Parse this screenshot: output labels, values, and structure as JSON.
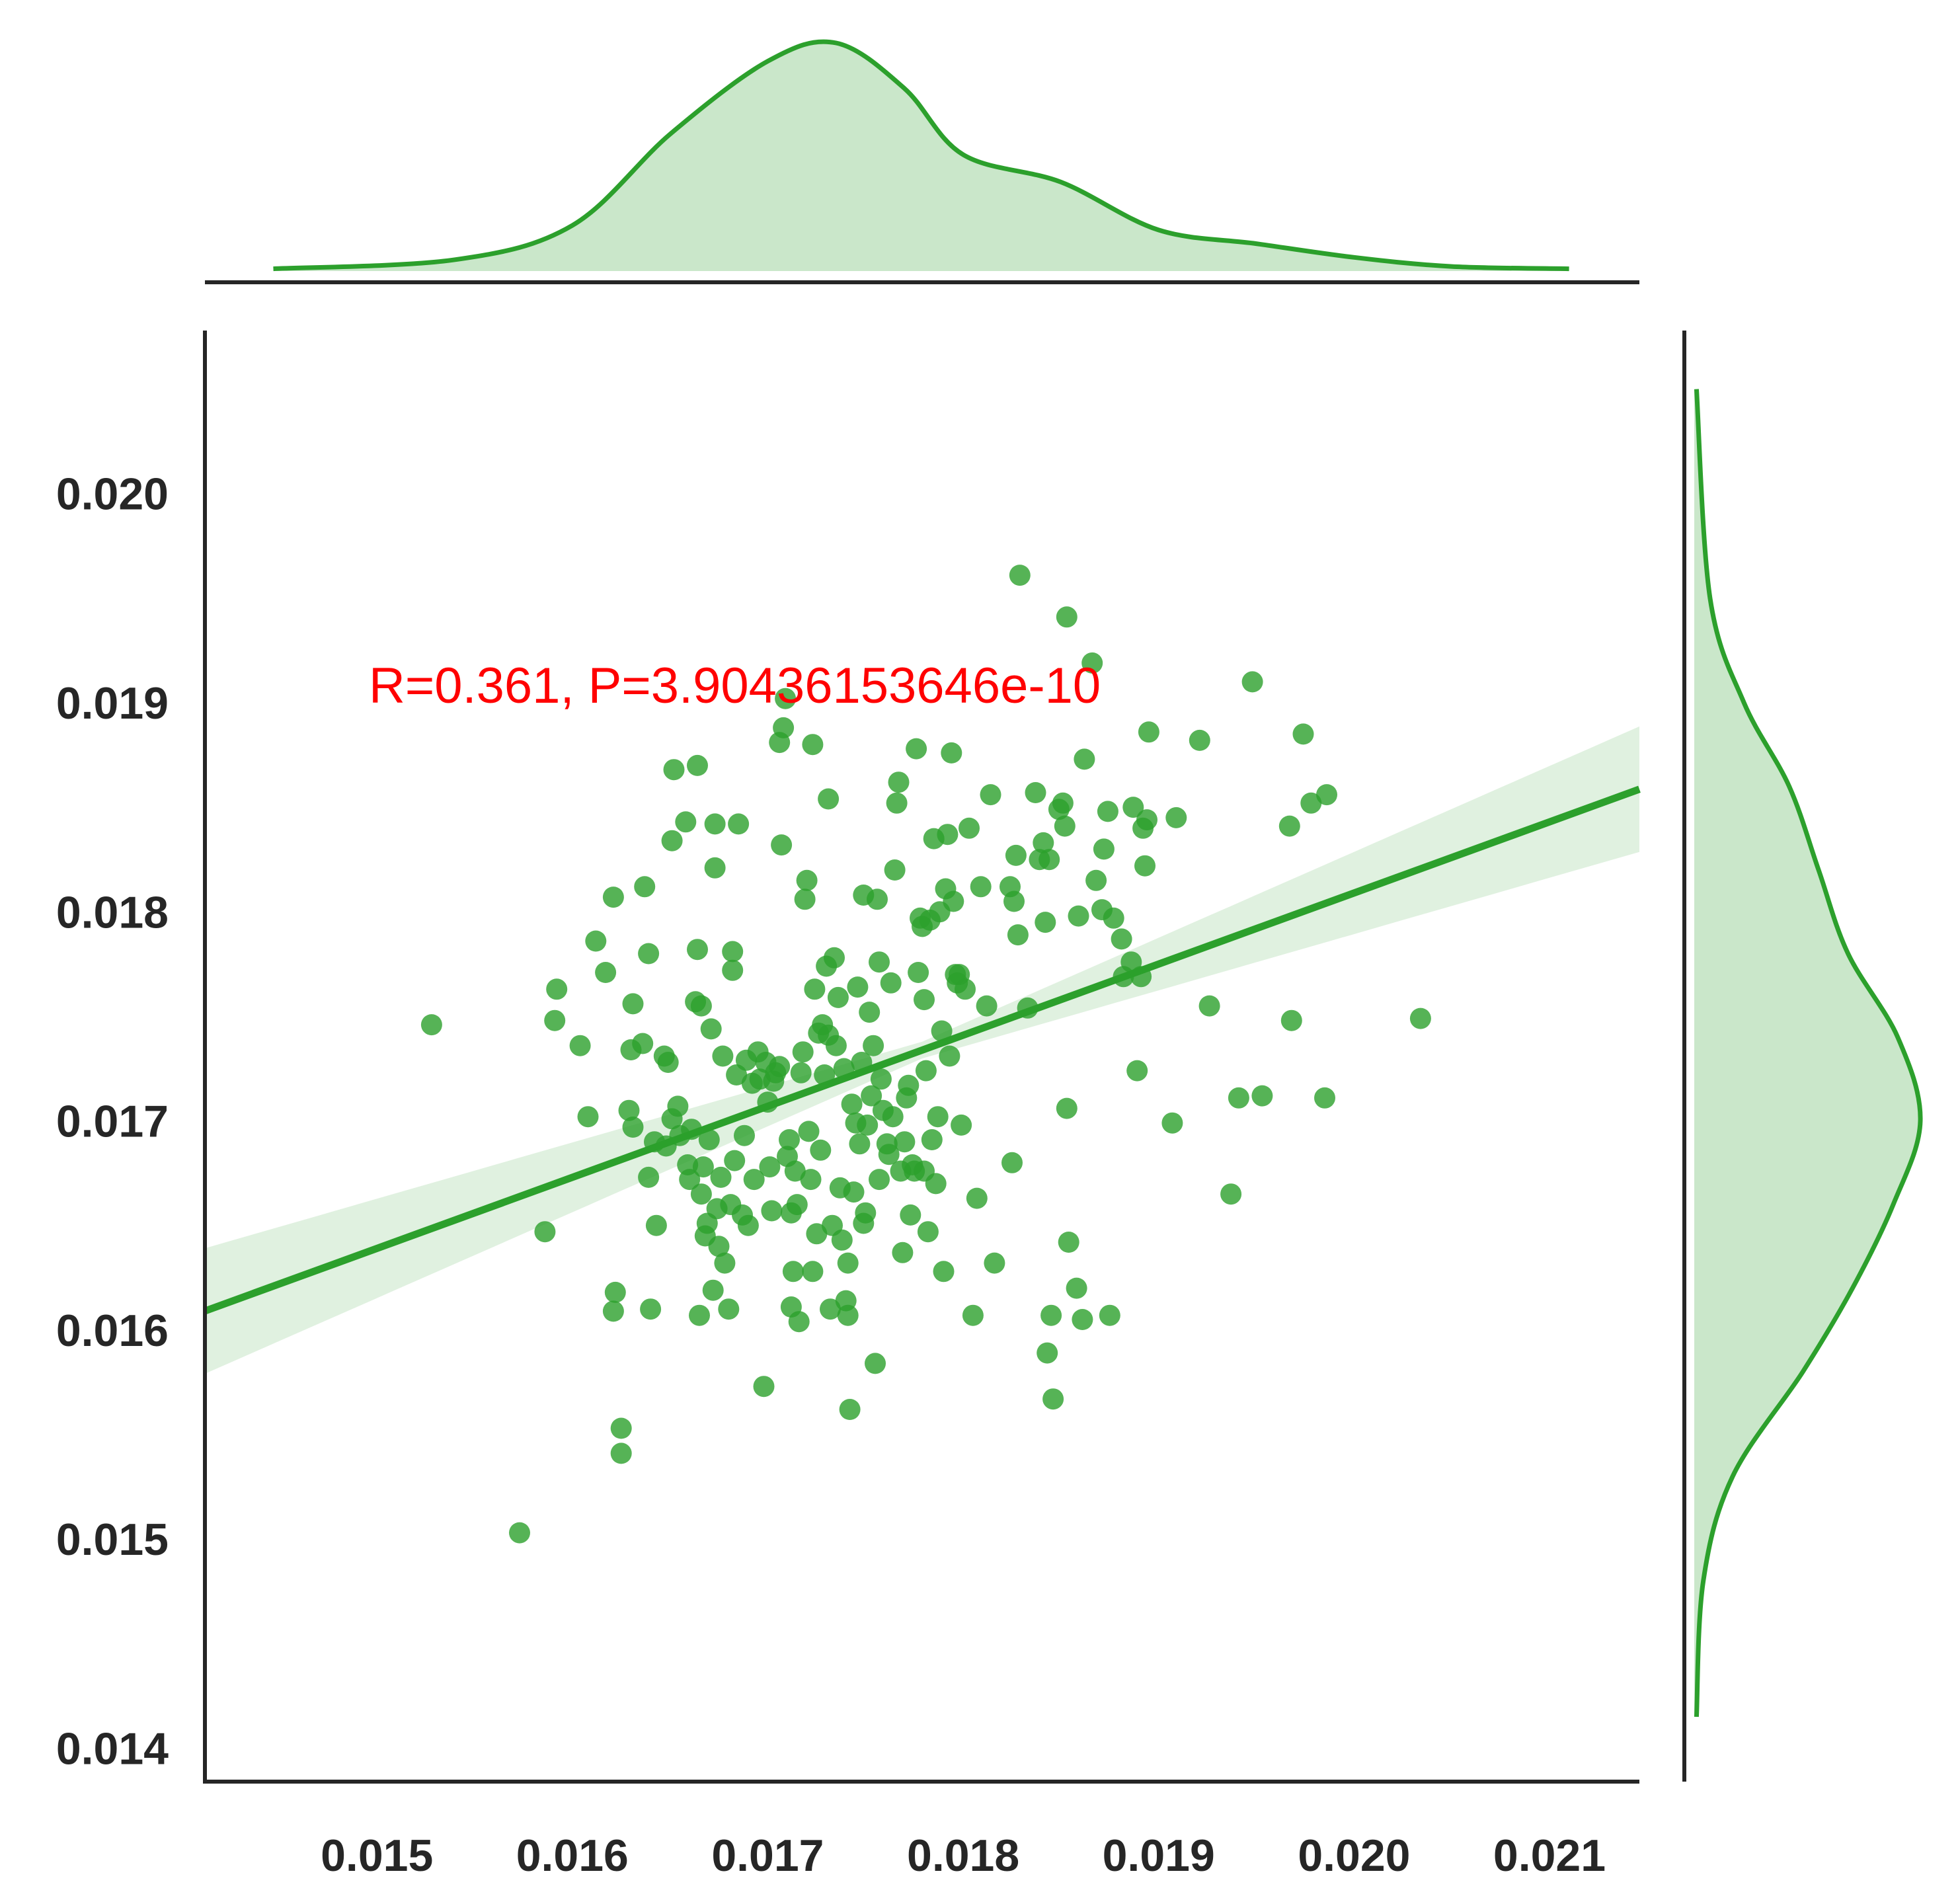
{
  "chart_data": {
    "type": "scatter",
    "title": "",
    "xlabel": "",
    "ylabel": "",
    "xlim": [
      0.01412,
      0.02146
    ],
    "ylim": [
      0.01384,
      0.02078
    ],
    "xticks": [
      "0.015",
      "0.016",
      "0.017",
      "0.018",
      "0.019",
      "0.020",
      "0.021"
    ],
    "yticks": [
      "0.014",
      "0.015",
      "0.016",
      "0.017",
      "0.018",
      "0.019",
      "0.020"
    ],
    "grid": false,
    "color": "#2ca02c",
    "annotation": "R=0.361, P=3.90436153646e-10",
    "regression": {
      "slope": 0.34,
      "intercept": 0.01129,
      "ci_half_width_at_ends": 0.00026
    },
    "marginal_x_kde": {
      "x": [
        0.01447,
        0.0154,
        0.016,
        0.0165,
        0.017,
        0.01735,
        0.0177,
        0.018,
        0.0185,
        0.019,
        0.0195,
        0.02,
        0.0205,
        0.0211
      ],
      "density": [
        0.01,
        0.05,
        0.2,
        0.6,
        0.92,
        1.0,
        0.8,
        0.51,
        0.39,
        0.18,
        0.12,
        0.06,
        0.02,
        0.01
      ]
    },
    "marginal_y_kde": {
      "y": [
        0.01415,
        0.0148,
        0.0153,
        0.0158,
        0.0162,
        0.0166,
        0.017,
        0.0174,
        0.0178,
        0.0182,
        0.0186,
        0.019,
        0.0195,
        0.0205
      ],
      "density": [
        0.01,
        0.04,
        0.17,
        0.48,
        0.7,
        0.88,
        1.0,
        0.9,
        0.68,
        0.55,
        0.42,
        0.22,
        0.07,
        0.01
      ]
    },
    "points": [
      [
        0.01528,
        0.01746
      ],
      [
        0.01573,
        0.01503
      ],
      [
        0.01586,
        0.01647
      ],
      [
        0.01591,
        0.01748
      ],
      [
        0.01592,
        0.01763
      ],
      [
        0.01604,
        0.01736
      ],
      [
        0.01608,
        0.01702
      ],
      [
        0.01612,
        0.01786
      ],
      [
        0.01617,
        0.01771
      ],
      [
        0.01621,
        0.01609
      ],
      [
        0.01621,
        0.01807
      ],
      [
        0.01622,
        0.01618
      ],
      [
        0.01625,
        0.01541
      ],
      [
        0.01625,
        0.01553
      ],
      [
        0.01629,
        0.01705
      ],
      [
        0.0163,
        0.01734
      ],
      [
        0.01631,
        0.01756
      ],
      [
        0.01631,
        0.01697
      ],
      [
        0.01636,
        0.01737
      ],
      [
        0.01637,
        0.01812
      ],
      [
        0.01639,
        0.01673
      ],
      [
        0.0164,
        0.0161
      ],
      [
        0.01639,
        0.0178
      ],
      [
        0.01643,
        0.0165
      ],
      [
        0.01642,
        0.0169
      ],
      [
        0.01647,
        0.01731
      ],
      [
        0.01648,
        0.01688
      ],
      [
        0.01649,
        0.01728
      ],
      [
        0.01651,
        0.01701
      ],
      [
        0.01651,
        0.01834
      ],
      [
        0.01652,
        0.01868
      ],
      [
        0.01654,
        0.01707
      ],
      [
        0.01655,
        0.01693
      ],
      [
        0.01658,
        0.01843
      ],
      [
        0.01659,
        0.01679
      ],
      [
        0.0166,
        0.01672
      ],
      [
        0.01661,
        0.01696
      ],
      [
        0.01663,
        0.01757
      ],
      [
        0.01664,
        0.0187
      ],
      [
        0.01664,
        0.01782
      ],
      [
        0.01665,
        0.01607
      ],
      [
        0.01666,
        0.01665
      ],
      [
        0.01666,
        0.01755
      ],
      [
        0.01667,
        0.01678
      ],
      [
        0.01668,
        0.01645
      ],
      [
        0.01669,
        0.01651
      ],
      [
        0.0167,
        0.01691
      ],
      [
        0.01671,
        0.01744
      ],
      [
        0.01672,
        0.01619
      ],
      [
        0.01673,
        0.01842
      ],
      [
        0.01673,
        0.01821
      ],
      [
        0.01674,
        0.01658
      ],
      [
        0.01675,
        0.0164
      ],
      [
        0.01676,
        0.01673
      ],
      [
        0.01677,
        0.01731
      ],
      [
        0.01678,
        0.01632
      ],
      [
        0.0168,
        0.0161
      ],
      [
        0.01681,
        0.0166
      ],
      [
        0.01682,
        0.01781
      ],
      [
        0.01682,
        0.01772
      ],
      [
        0.01683,
        0.01681
      ],
      [
        0.01684,
        0.01722
      ],
      [
        0.01685,
        0.01842
      ],
      [
        0.01687,
        0.01655
      ],
      [
        0.01688,
        0.01693
      ],
      [
        0.01689,
        0.01729
      ],
      [
        0.0169,
        0.0165
      ],
      [
        0.01692,
        0.01718
      ],
      [
        0.01693,
        0.01672
      ],
      [
        0.01695,
        0.01733
      ],
      [
        0.01696,
        0.0172
      ],
      [
        0.01698,
        0.01573
      ],
      [
        0.01699,
        0.01728
      ],
      [
        0.017,
        0.01709
      ],
      [
        0.01701,
        0.01678
      ],
      [
        0.01702,
        0.01657
      ],
      [
        0.01703,
        0.01719
      ],
      [
        0.01704,
        0.01723
      ],
      [
        0.01706,
        0.01726
      ],
      [
        0.01706,
        0.01881
      ],
      [
        0.01707,
        0.01832
      ],
      [
        0.01708,
        0.01888
      ],
      [
        0.01709,
        0.01902
      ],
      [
        0.0171,
        0.01683
      ],
      [
        0.01711,
        0.01691
      ],
      [
        0.01712,
        0.01611
      ],
      [
        0.01712,
        0.01656
      ],
      [
        0.01713,
        0.01628
      ],
      [
        0.01714,
        0.01676
      ],
      [
        0.01715,
        0.0166
      ],
      [
        0.01716,
        0.01604
      ],
      [
        0.01717,
        0.01723
      ],
      [
        0.01718,
        0.01733
      ],
      [
        0.01719,
        0.01806
      ],
      [
        0.0172,
        0.01815
      ],
      [
        0.01721,
        0.01695
      ],
      [
        0.01722,
        0.01672
      ],
      [
        0.01723,
        0.01628
      ],
      [
        0.01723,
        0.0188
      ],
      [
        0.01724,
        0.01763
      ],
      [
        0.01725,
        0.01646
      ],
      [
        0.01726,
        0.01742
      ],
      [
        0.01727,
        0.01686
      ],
      [
        0.01728,
        0.01746
      ],
      [
        0.01729,
        0.01722
      ],
      [
        0.0173,
        0.01774
      ],
      [
        0.01731,
        0.01854
      ],
      [
        0.01731,
        0.01741
      ],
      [
        0.01732,
        0.0161
      ],
      [
        0.01733,
        0.0165
      ],
      [
        0.01734,
        0.01778
      ],
      [
        0.01735,
        0.01736
      ],
      [
        0.01736,
        0.01759
      ],
      [
        0.01737,
        0.01668
      ],
      [
        0.01738,
        0.01643
      ],
      [
        0.01739,
        0.01725
      ],
      [
        0.0174,
        0.01614
      ],
      [
        0.01741,
        0.01607
      ],
      [
        0.01741,
        0.01632
      ],
      [
        0.01742,
        0.01562
      ],
      [
        0.01743,
        0.01708
      ],
      [
        0.01744,
        0.01666
      ],
      [
        0.01745,
        0.01699
      ],
      [
        0.01746,
        0.01764
      ],
      [
        0.01747,
        0.01689
      ],
      [
        0.01748,
        0.01728
      ],
      [
        0.01749,
        0.01808
      ],
      [
        0.01749,
        0.01651
      ],
      [
        0.0175,
        0.01656
      ],
      [
        0.01751,
        0.01698
      ],
      [
        0.01752,
        0.01752
      ],
      [
        0.01753,
        0.01712
      ],
      [
        0.01754,
        0.01736
      ],
      [
        0.01755,
        0.01584
      ],
      [
        0.01756,
        0.01806
      ],
      [
        0.01757,
        0.01776
      ],
      [
        0.01757,
        0.01672
      ],
      [
        0.01758,
        0.0172
      ],
      [
        0.01759,
        0.01705
      ],
      [
        0.01761,
        0.01689
      ],
      [
        0.01762,
        0.01684
      ],
      [
        0.01763,
        0.01766
      ],
      [
        0.01764,
        0.01702
      ],
      [
        0.01765,
        0.0182
      ],
      [
        0.01766,
        0.01852
      ],
      [
        0.01767,
        0.01862
      ],
      [
        0.01768,
        0.01676
      ],
      [
        0.01769,
        0.01637
      ],
      [
        0.0177,
        0.0169
      ],
      [
        0.01771,
        0.01711
      ],
      [
        0.01772,
        0.01717
      ],
      [
        0.01773,
        0.01655
      ],
      [
        0.01774,
        0.01679
      ],
      [
        0.01775,
        0.01676
      ],
      [
        0.01776,
        0.01878
      ],
      [
        0.01777,
        0.01771
      ],
      [
        0.01778,
        0.01797
      ],
      [
        0.01779,
        0.01793
      ],
      [
        0.0178,
        0.01676
      ],
      [
        0.0178,
        0.01758
      ],
      [
        0.01781,
        0.01724
      ],
      [
        0.01782,
        0.01647
      ],
      [
        0.01783,
        0.01796
      ],
      [
        0.01784,
        0.01691
      ],
      [
        0.01785,
        0.01835
      ],
      [
        0.01786,
        0.0167
      ],
      [
        0.01787,
        0.01702
      ],
      [
        0.01788,
        0.018
      ],
      [
        0.01789,
        0.01743
      ],
      [
        0.0179,
        0.01628
      ],
      [
        0.01791,
        0.01811
      ],
      [
        0.01792,
        0.01837
      ],
      [
        0.01793,
        0.01731
      ],
      [
        0.01794,
        0.01876
      ],
      [
        0.01795,
        0.01805
      ],
      [
        0.01796,
        0.0177
      ],
      [
        0.01797,
        0.01766
      ],
      [
        0.01798,
        0.0177
      ],
      [
        0.01799,
        0.01698
      ],
      [
        0.01801,
        0.01763
      ],
      [
        0.01803,
        0.0184
      ],
      [
        0.01805,
        0.01607
      ],
      [
        0.01807,
        0.01663
      ],
      [
        0.01809,
        0.01812
      ],
      [
        0.01812,
        0.01755
      ],
      [
        0.01814,
        0.01856
      ],
      [
        0.01816,
        0.01632
      ],
      [
        0.01824,
        0.01812
      ],
      [
        0.01825,
        0.0168
      ],
      [
        0.01826,
        0.01805
      ],
      [
        0.01827,
        0.01827
      ],
      [
        0.01828,
        0.01789
      ],
      [
        0.01829,
        0.01961
      ],
      [
        0.01833,
        0.01754
      ],
      [
        0.01837,
        0.01857
      ],
      [
        0.01839,
        0.01825
      ],
      [
        0.01841,
        0.01833
      ],
      [
        0.01842,
        0.01795
      ],
      [
        0.01843,
        0.01589
      ],
      [
        0.01844,
        0.01825
      ],
      [
        0.01845,
        0.01607
      ],
      [
        0.01846,
        0.01567
      ],
      [
        0.01849,
        0.01849
      ],
      [
        0.01851,
        0.01852
      ],
      [
        0.01852,
        0.01841
      ],
      [
        0.01853,
        0.01941
      ],
      [
        0.01853,
        0.01706
      ],
      [
        0.01854,
        0.01642
      ],
      [
        0.01858,
        0.0162
      ],
      [
        0.01859,
        0.01798
      ],
      [
        0.01861,
        0.01605
      ],
      [
        0.01862,
        0.01873
      ],
      [
        0.01866,
        0.01919
      ],
      [
        0.01868,
        0.01815
      ],
      [
        0.01871,
        0.01801
      ],
      [
        0.01872,
        0.0183
      ],
      [
        0.01874,
        0.01848
      ],
      [
        0.01875,
        0.01607
      ],
      [
        0.01877,
        0.01797
      ],
      [
        0.01881,
        0.01787
      ],
      [
        0.01882,
        0.01769
      ],
      [
        0.01886,
        0.01776
      ],
      [
        0.01887,
        0.0185
      ],
      [
        0.01889,
        0.01724
      ],
      [
        0.01891,
        0.01769
      ],
      [
        0.01892,
        0.0184
      ],
      [
        0.01893,
        0.01822
      ],
      [
        0.01894,
        0.01844
      ],
      [
        0.01895,
        0.01886
      ],
      [
        0.01907,
        0.01699
      ],
      [
        0.01909,
        0.01845
      ],
      [
        0.01921,
        0.01882
      ],
      [
        0.01926,
        0.01755
      ],
      [
        0.01937,
        0.01665
      ],
      [
        0.01941,
        0.01711
      ],
      [
        0.01948,
        0.0191
      ],
      [
        0.01953,
        0.01712
      ],
      [
        0.01967,
        0.01841
      ],
      [
        0.01968,
        0.01748
      ],
      [
        0.01974,
        0.01885
      ],
      [
        0.01978,
        0.01852
      ],
      [
        0.01986,
        0.01856
      ],
      [
        0.01985,
        0.01711
      ],
      [
        0.02034,
        0.01749
      ]
    ]
  }
}
